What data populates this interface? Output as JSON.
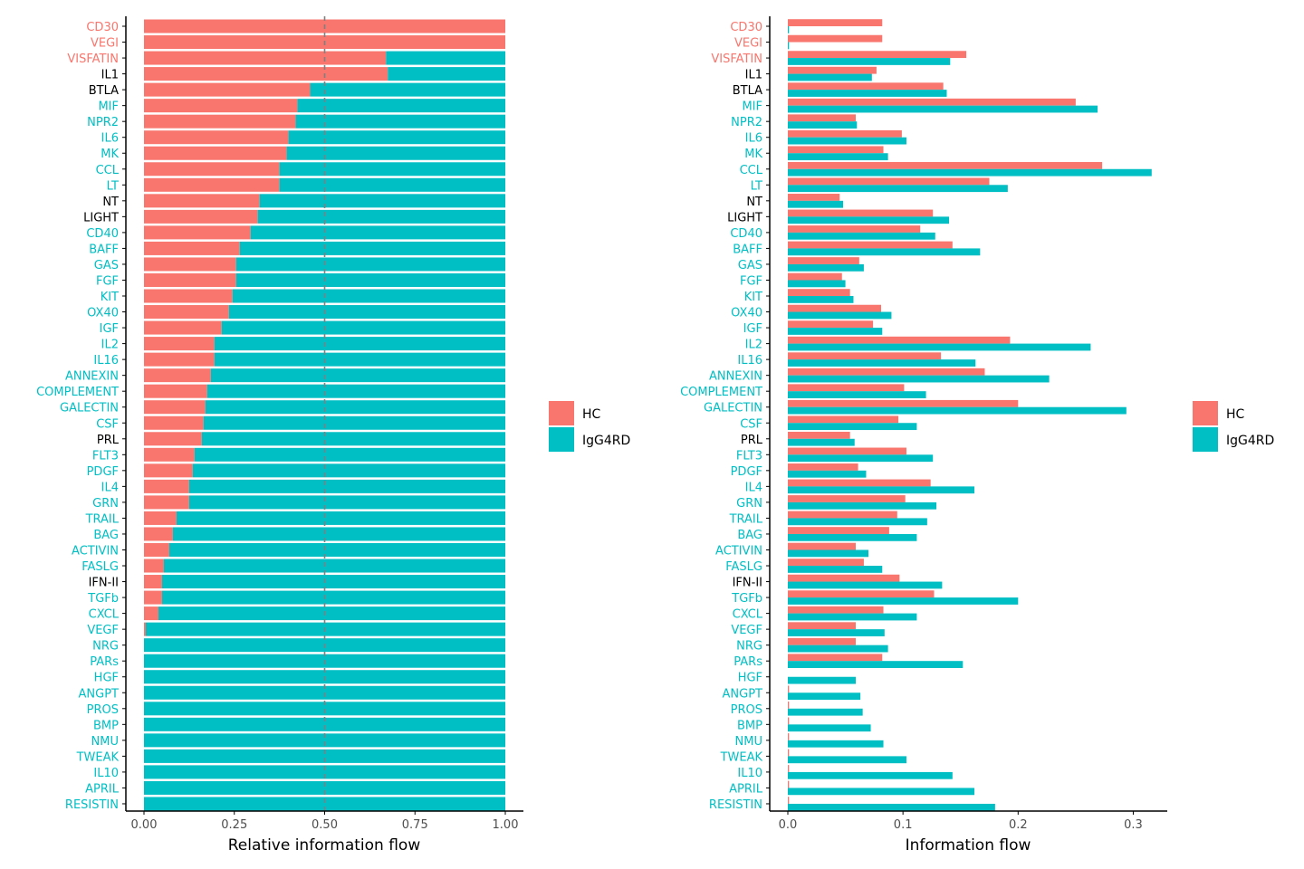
{
  "colors": {
    "HC": "#F8766D",
    "IgG4RD": "#00BFC4",
    "label_black": "#000000",
    "axis": "#000000",
    "reference_line": "#808080"
  },
  "legend": {
    "entries": [
      "HC",
      "IgG4RD"
    ]
  },
  "chart_data": [
    {
      "type": "bar",
      "orientation": "horizontal",
      "stacked": true,
      "xlabel": "Relative information flow",
      "xlim": [
        0,
        1
      ],
      "xticks": [
        "0.00",
        "0.25",
        "0.50",
        "0.75",
        "1.00"
      ],
      "xtick_values": [
        0,
        0.25,
        0.5,
        0.75,
        1.0
      ],
      "reference_line_x": 0.5,
      "legend_position": "right",
      "categories": [
        "CD30",
        "VEGI",
        "VISFATIN",
        "IL1",
        "BTLA",
        "MIF",
        "NPR2",
        "IL6",
        "MK",
        "CCL",
        "LT",
        "NT",
        "LIGHT",
        "CD40",
        "BAFF",
        "GAS",
        "FGF",
        "KIT",
        "OX40",
        "IGF",
        "IL2",
        "IL16",
        "ANNEXIN",
        "COMPLEMENT",
        "GALECTIN",
        "CSF",
        "PRL",
        "FLT3",
        "PDGF",
        "IL4",
        "GRN",
        "TRAIL",
        "BAG",
        "ACTIVIN",
        "FASLG",
        "IFN-II",
        "TGFb",
        "CXCL",
        "VEGF",
        "NRG",
        "PARs",
        "HGF",
        "ANGPT",
        "PROS",
        "BMP",
        "NMU",
        "TWEAK",
        "IL10",
        "APRIL",
        "RESISTIN"
      ],
      "label_colors": [
        "HC",
        "HC",
        "HC",
        "black",
        "black",
        "IgG4RD",
        "IgG4RD",
        "IgG4RD",
        "IgG4RD",
        "IgG4RD",
        "IgG4RD",
        "black",
        "black",
        "IgG4RD",
        "IgG4RD",
        "IgG4RD",
        "IgG4RD",
        "IgG4RD",
        "IgG4RD",
        "IgG4RD",
        "IgG4RD",
        "IgG4RD",
        "IgG4RD",
        "IgG4RD",
        "IgG4RD",
        "IgG4RD",
        "black",
        "IgG4RD",
        "IgG4RD",
        "IgG4RD",
        "IgG4RD",
        "IgG4RD",
        "IgG4RD",
        "IgG4RD",
        "IgG4RD",
        "black",
        "IgG4RD",
        "IgG4RD",
        "IgG4RD",
        "IgG4RD",
        "IgG4RD",
        "IgG4RD",
        "IgG4RD",
        "IgG4RD",
        "IgG4RD",
        "IgG4RD",
        "IgG4RD",
        "IgG4RD",
        "IgG4RD",
        "IgG4RD"
      ],
      "series": [
        {
          "name": "HC",
          "values": [
            1.0,
            1.0,
            0.67,
            0.675,
            0.46,
            0.425,
            0.42,
            0.4,
            0.395,
            0.375,
            0.375,
            0.32,
            0.315,
            0.295,
            0.265,
            0.255,
            0.255,
            0.245,
            0.235,
            0.215,
            0.195,
            0.195,
            0.185,
            0.175,
            0.17,
            0.165,
            0.16,
            0.14,
            0.135,
            0.125,
            0.125,
            0.09,
            0.08,
            0.07,
            0.055,
            0.05,
            0.05,
            0.04,
            0.005,
            0.0,
            0.0,
            0.0,
            0.0,
            0.0,
            0.0,
            0.0,
            0.0,
            0.0,
            0.0,
            0.0
          ]
        },
        {
          "name": "IgG4RD",
          "values": [
            0.0,
            0.0,
            0.33,
            0.325,
            0.54,
            0.575,
            0.58,
            0.6,
            0.605,
            0.625,
            0.625,
            0.68,
            0.685,
            0.705,
            0.735,
            0.745,
            0.745,
            0.755,
            0.765,
            0.785,
            0.805,
            0.805,
            0.815,
            0.825,
            0.83,
            0.835,
            0.84,
            0.86,
            0.865,
            0.875,
            0.875,
            0.91,
            0.92,
            0.93,
            0.945,
            0.95,
            0.95,
            0.96,
            0.995,
            1.0,
            1.0,
            1.0,
            1.0,
            1.0,
            1.0,
            1.0,
            1.0,
            1.0,
            1.0,
            1.0
          ]
        }
      ]
    },
    {
      "type": "bar",
      "orientation": "horizontal",
      "stacked": false,
      "xlabel": "Information flow",
      "xlim": [
        0,
        0.33
      ],
      "xticks": [
        "0.0",
        "0.1",
        "0.2",
        "0.3"
      ],
      "xtick_values": [
        0,
        0.1,
        0.2,
        0.3
      ],
      "legend_position": "right",
      "categories": [
        "CD30",
        "VEGI",
        "VISFATIN",
        "IL1",
        "BTLA",
        "MIF",
        "NPR2",
        "IL6",
        "MK",
        "CCL",
        "LT",
        "NT",
        "LIGHT",
        "CD40",
        "BAFF",
        "GAS",
        "FGF",
        "KIT",
        "OX40",
        "IGF",
        "IL2",
        "IL16",
        "ANNEXIN",
        "COMPLEMENT",
        "GALECTIN",
        "CSF",
        "PRL",
        "FLT3",
        "PDGF",
        "IL4",
        "GRN",
        "TRAIL",
        "BAG",
        "ACTIVIN",
        "FASLG",
        "IFN-II",
        "TGFb",
        "CXCL",
        "VEGF",
        "NRG",
        "PARs",
        "HGF",
        "ANGPT",
        "PROS",
        "BMP",
        "NMU",
        "TWEAK",
        "IL10",
        "APRIL",
        "RESISTIN"
      ],
      "label_colors": [
        "HC",
        "HC",
        "HC",
        "black",
        "black",
        "IgG4RD",
        "IgG4RD",
        "IgG4RD",
        "IgG4RD",
        "IgG4RD",
        "IgG4RD",
        "black",
        "black",
        "IgG4RD",
        "IgG4RD",
        "IgG4RD",
        "IgG4RD",
        "IgG4RD",
        "IgG4RD",
        "IgG4RD",
        "IgG4RD",
        "IgG4RD",
        "IgG4RD",
        "IgG4RD",
        "IgG4RD",
        "IgG4RD",
        "black",
        "IgG4RD",
        "IgG4RD",
        "IgG4RD",
        "IgG4RD",
        "IgG4RD",
        "IgG4RD",
        "IgG4RD",
        "IgG4RD",
        "black",
        "IgG4RD",
        "IgG4RD",
        "IgG4RD",
        "IgG4RD",
        "IgG4RD",
        "IgG4RD",
        "IgG4RD",
        "IgG4RD",
        "IgG4RD",
        "IgG4RD",
        "IgG4RD",
        "IgG4RD",
        "IgG4RD",
        "IgG4RD"
      ],
      "series": [
        {
          "name": "HC",
          "values": [
            0.082,
            0.082,
            0.155,
            0.077,
            0.135,
            0.25,
            0.059,
            0.099,
            0.083,
            0.273,
            0.175,
            0.045,
            0.126,
            0.115,
            0.143,
            0.062,
            0.047,
            0.054,
            0.081,
            0.074,
            0.193,
            0.133,
            0.171,
            0.101,
            0.2,
            0.096,
            0.054,
            0.103,
            0.061,
            0.124,
            0.102,
            0.095,
            0.088,
            0.059,
            0.066,
            0.097,
            0.127,
            0.083,
            0.059,
            0.059,
            0.082,
            0.0,
            0.001,
            0.001,
            0.001,
            0.001,
            0.001,
            0.001,
            0.001,
            0.001
          ]
        },
        {
          "name": "IgG4RD",
          "values": [
            0.001,
            0.001,
            0.141,
            0.073,
            0.138,
            0.269,
            0.06,
            0.103,
            0.087,
            0.316,
            0.191,
            0.048,
            0.14,
            0.128,
            0.167,
            0.066,
            0.05,
            0.057,
            0.09,
            0.082,
            0.263,
            0.163,
            0.227,
            0.12,
            0.294,
            0.112,
            0.058,
            0.126,
            0.068,
            0.162,
            0.129,
            0.121,
            0.112,
            0.07,
            0.082,
            0.134,
            0.2,
            0.112,
            0.084,
            0.087,
            0.152,
            0.059,
            0.063,
            0.065,
            0.072,
            0.083,
            0.103,
            0.143,
            0.162,
            0.18
          ]
        }
      ]
    }
  ]
}
